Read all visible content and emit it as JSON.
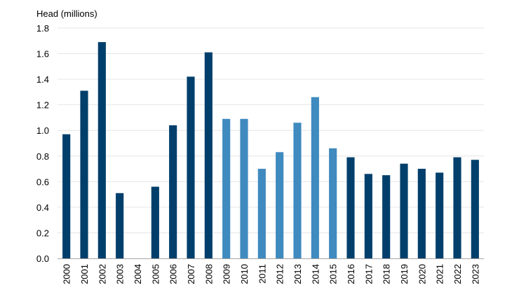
{
  "chart_data": {
    "type": "bar",
    "title": "",
    "ylabel": "Head (millions)",
    "xlabel": "",
    "ylim": [
      0,
      1.8
    ],
    "ytick_step": 0.2,
    "yticks": [
      "0.0",
      "0.2",
      "0.4",
      "0.6",
      "0.8",
      "1.0",
      "1.2",
      "1.4",
      "1.6",
      "1.8"
    ],
    "grid": true,
    "legend": "none",
    "categories": [
      "2000",
      "2001",
      "2002",
      "2003",
      "2004",
      "2005",
      "2006",
      "2007",
      "2008",
      "2009",
      "2010",
      "2011",
      "2012",
      "2013",
      "2014",
      "2015",
      "2016",
      "2017",
      "2018",
      "2019",
      "2020",
      "2021",
      "2022",
      "2023"
    ],
    "values": [
      0.97,
      1.31,
      1.69,
      0.51,
      0.0,
      0.56,
      1.04,
      1.42,
      1.61,
      1.09,
      1.09,
      0.7,
      0.83,
      1.06,
      1.26,
      0.86,
      0.79,
      0.66,
      0.65,
      0.74,
      0.7,
      0.67,
      0.79,
      0.77
    ],
    "bar_colors": [
      "#003f6b",
      "#003f6b",
      "#003f6b",
      "#003f6b",
      "#003f6b",
      "#003f6b",
      "#003f6b",
      "#003f6b",
      "#003f6b",
      "#3f8abf",
      "#3f8abf",
      "#3f8abf",
      "#3f8abf",
      "#3f8abf",
      "#3f8abf",
      "#3f8abf",
      "#003f6b",
      "#003f6b",
      "#003f6b",
      "#003f6b",
      "#003f6b",
      "#003f6b",
      "#003f6b",
      "#003f6b"
    ],
    "colors": {
      "dark": "#003f6b",
      "light": "#3f8abf",
      "grid": "#e6e6e6",
      "axis": "#a6a6a6"
    }
  }
}
